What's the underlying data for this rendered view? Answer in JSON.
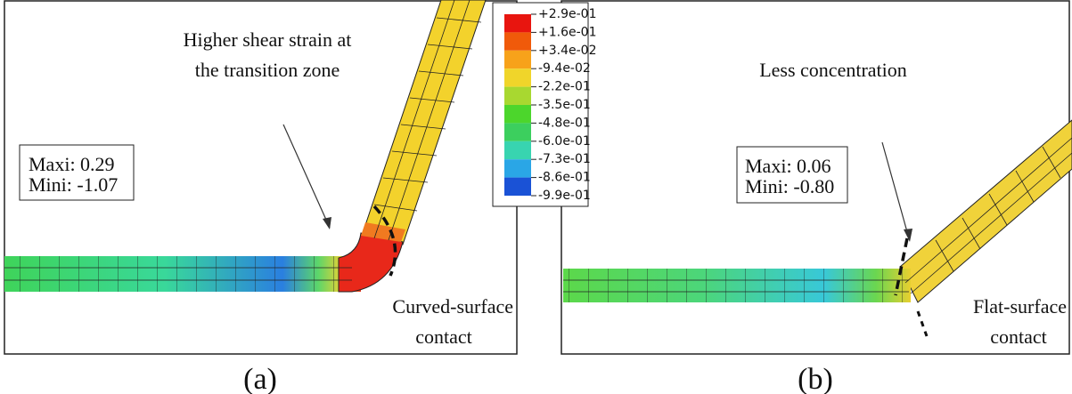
{
  "panels": [
    {
      "label": "(a)",
      "annotation": [
        "Higher shear strain at",
        "the transition zone"
      ],
      "stats": [
        "Maxi: 0.29",
        "Mini: -1.07"
      ],
      "contact": [
        "Curved-surface",
        "contact"
      ]
    },
    {
      "label": "(b)",
      "annotation": [
        "Less concentration"
      ],
      "stats": [
        "Maxi: 0.06",
        "Mini: -0.80"
      ],
      "contact": [
        "Flat-surface",
        "contact"
      ]
    }
  ],
  "legend": {
    "labels": [
      "+2.9e-01",
      "+1.6e-01",
      "+3.4e-02",
      "-9.4e-02",
      "-2.2e-01",
      "-3.5e-01",
      "-4.8e-01",
      "-6.0e-01",
      "-7.3e-01",
      "-8.6e-01",
      "-9.9e-01"
    ]
  }
}
